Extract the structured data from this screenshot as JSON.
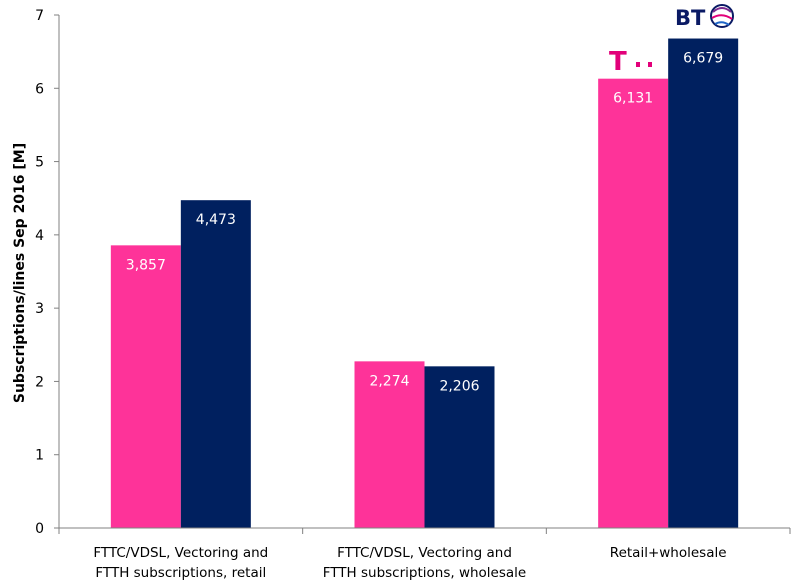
{
  "chart_data": {
    "type": "bar",
    "ylabel": "Subscriptions/lines Sep 2016 [M]",
    "ylim": [
      0,
      7
    ],
    "yticks": [
      0,
      1,
      2,
      3,
      4,
      5,
      6,
      7
    ],
    "categories": [
      [
        "FTTC/VDSL, Vectoring and",
        "FTTH subscriptions, retail"
      ],
      [
        "FTTC/VDSL, Vectoring and",
        "FTTH subscriptions, wholesale"
      ],
      [
        "Retail+wholesale"
      ]
    ],
    "series": [
      {
        "color": "#fe3399",
        "values": [
          3.857,
          2.274,
          6.131
        ],
        "labels": [
          "3,857",
          "2,274",
          "6,131"
        ]
      },
      {
        "color": "#00205f",
        "values": [
          4.473,
          2.206,
          6.679
        ],
        "labels": [
          "4,473",
          "2,206",
          "6,679"
        ]
      }
    ],
    "logos": {
      "bt": "BT",
      "telekom": "T"
    },
    "grid": false
  }
}
